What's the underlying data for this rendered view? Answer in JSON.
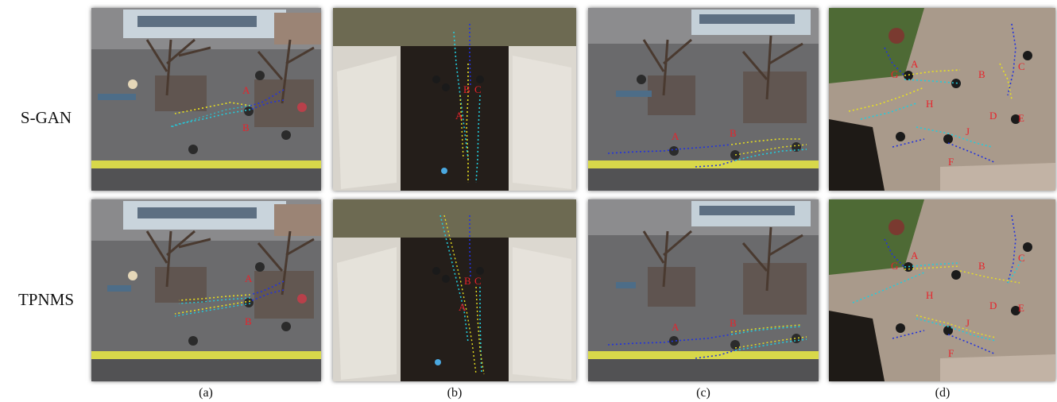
{
  "rows": [
    {
      "label": "S-GAN"
    },
    {
      "label": "TPNMS"
    }
  ],
  "columns": [
    {
      "caption": "(a)",
      "markers": [
        "A",
        "B"
      ]
    },
    {
      "caption": "(b)",
      "markers": [
        "A",
        "B",
        "C"
      ]
    },
    {
      "caption": "(c)",
      "markers": [
        "A",
        "B"
      ]
    },
    {
      "caption": "(d)",
      "markers": [
        "A",
        "B",
        "C",
        "D",
        "E",
        "F",
        "G",
        "H",
        "J"
      ]
    }
  ],
  "colors": {
    "observed_path": "#2233dd",
    "prediction_cyan": "#22ccdd",
    "prediction_yellow": "#e8e020",
    "marker_text": "#e8232b"
  }
}
